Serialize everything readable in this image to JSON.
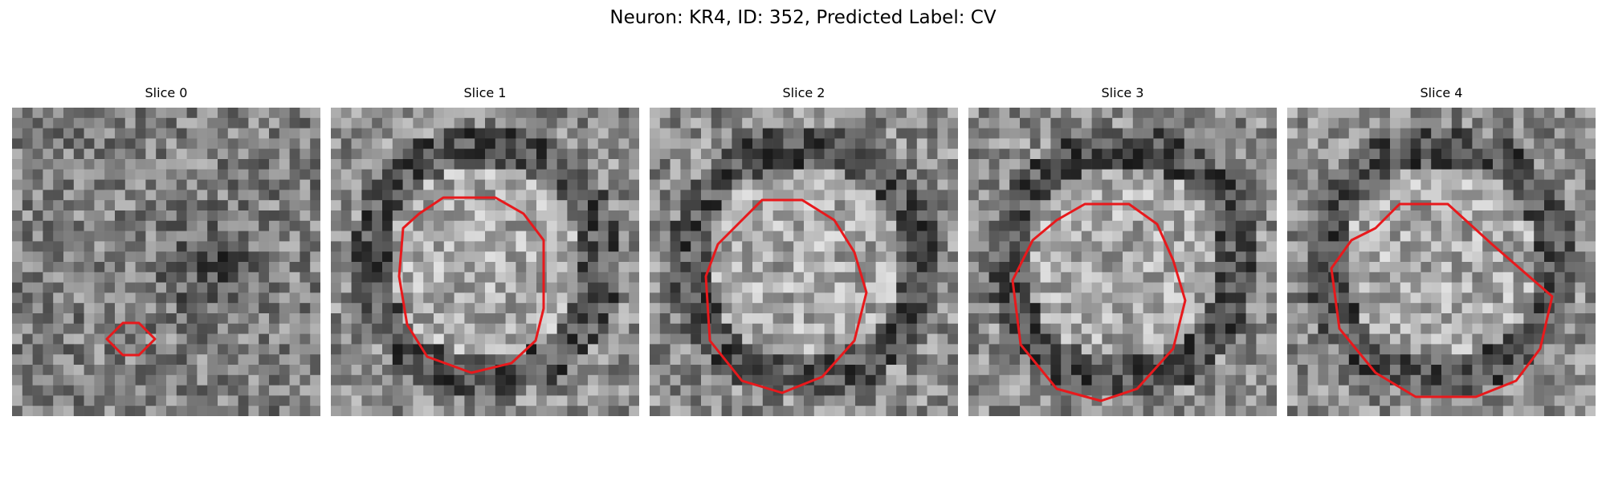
{
  "figure": {
    "title": "Neuron: KR4, ID: 352, Predicted Label: CV"
  },
  "colors": {
    "background": "#ffffff",
    "contour": "#e8191c",
    "image_colormap": "grayscale"
  },
  "panels": [
    {
      "title": "Slice 0",
      "contour": "small"
    },
    {
      "title": "Slice 1",
      "contour": "large"
    },
    {
      "title": "Slice 2",
      "contour": "large"
    },
    {
      "title": "Slice 3",
      "contour": "large"
    },
    {
      "title": "Slice 4",
      "contour": "large"
    }
  ]
}
